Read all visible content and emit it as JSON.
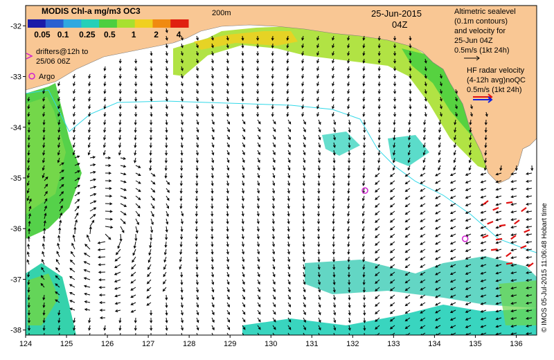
{
  "colorbar": {
    "title": "MODIS Chl-a mg/m3 OC3",
    "ticks": [
      "0.05",
      "0.1",
      "0.25",
      "0.5",
      "1",
      "2",
      "4"
    ],
    "colors": [
      "#1a1aa8",
      "#2a60d0",
      "#2fa8e0",
      "#24d0b8",
      "#4ccf40",
      "#a8e030",
      "#f0d020",
      "#f08a10",
      "#e02010"
    ]
  },
  "isobath_label": "200m",
  "date_label": "25-Jun-2015",
  "time_label": "04Z",
  "altimetry_legend": [
    "Altimetric sealevel",
    "(0.1m contours)",
    "and velocity for",
    "25-Jun 04Z",
    "0.5m/s (1kt 24h)"
  ],
  "hf_legend": [
    "HF radar velocity",
    "(4-12h avg)noQC",
    "0.5m/s (1kt 24h)"
  ],
  "drifters_legend": [
    "drifters@12h to",
    "25/06 06Z"
  ],
  "argo_label": "Argo",
  "credit": "© IMOS 05-Jul-2015 11:06:48 Hobart time",
  "axes": {
    "x_ticks": [
      "124",
      "125",
      "126",
      "127",
      "128",
      "129",
      "130",
      "131",
      "132",
      "133",
      "134",
      "135",
      "136"
    ],
    "y_ticks": [
      "-32",
      "-33",
      "-34",
      "-35",
      "-36",
      "-37",
      "-38"
    ],
    "lon_range": [
      124,
      136.5
    ],
    "lat_range": [
      -38.1,
      -31.6
    ]
  },
  "argo_floats": [
    {
      "lon": 132.3,
      "lat": -35.25
    },
    {
      "lon": 134.75,
      "lat": -36.2
    }
  ],
  "colors": {
    "land": "#f9c794",
    "ocean": "#ffffff",
    "isobath": "#30d8e8",
    "argo": "#d020d0",
    "hf_vectors": "#e01010",
    "hf_legend_red": "#e01010",
    "hf_legend_blue": "#1020e0"
  }
}
